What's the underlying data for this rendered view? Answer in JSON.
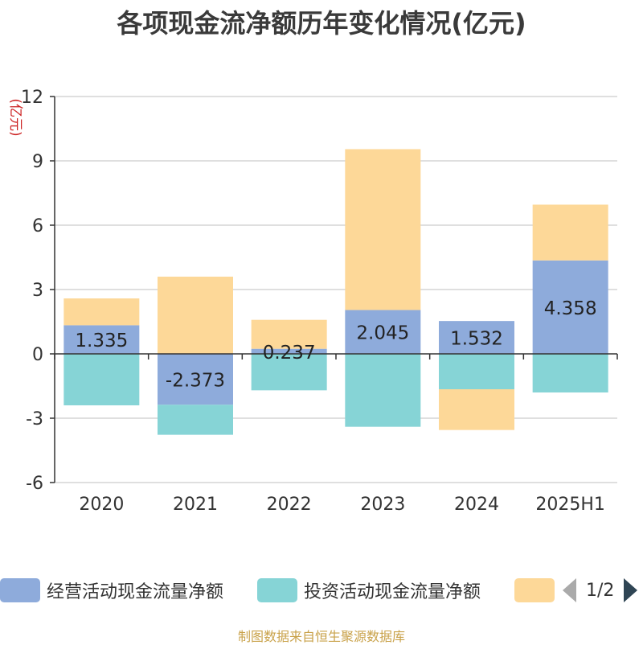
{
  "title": "各项现金流净额历年变化情况(亿元)",
  "source": "制图数据来自恒生聚源数据库",
  "legend": {
    "items": [
      {
        "label": "经营活动现金流量净额",
        "color": "#8eabdb"
      },
      {
        "label": "投资活动现金流量净额",
        "color": "#86d4d6"
      },
      {
        "label": "",
        "color": "#fdd898"
      }
    ],
    "page": "1/2"
  },
  "chart_data": {
    "type": "bar",
    "stacked": true,
    "categories": [
      "2020",
      "2021",
      "2022",
      "2023",
      "2024",
      "2025H1"
    ],
    "ylabel": "(亿元)",
    "ylim": [
      -6,
      12
    ],
    "yticks": [
      -6,
      -3,
      0,
      3,
      6,
      9,
      12
    ],
    "grid": true,
    "series": [
      {
        "name": "经营活动现金流量净额",
        "color": "#8eabdb",
        "values": [
          1.335,
          -2.373,
          0.237,
          2.045,
          1.532,
          4.358
        ],
        "labels": [
          "1.335",
          "-2.373",
          "0.237",
          "2.045",
          "1.532",
          "4.358"
        ]
      },
      {
        "name": "投资活动现金流量净额",
        "color": "#86d4d6",
        "values": [
          -2.4,
          -1.4,
          -1.7,
          -3.4,
          -1.65,
          -1.8
        ]
      },
      {
        "color": "#fdd898",
        "values": [
          1.25,
          3.6,
          1.35,
          7.5,
          -1.9,
          2.6
        ]
      }
    ]
  }
}
